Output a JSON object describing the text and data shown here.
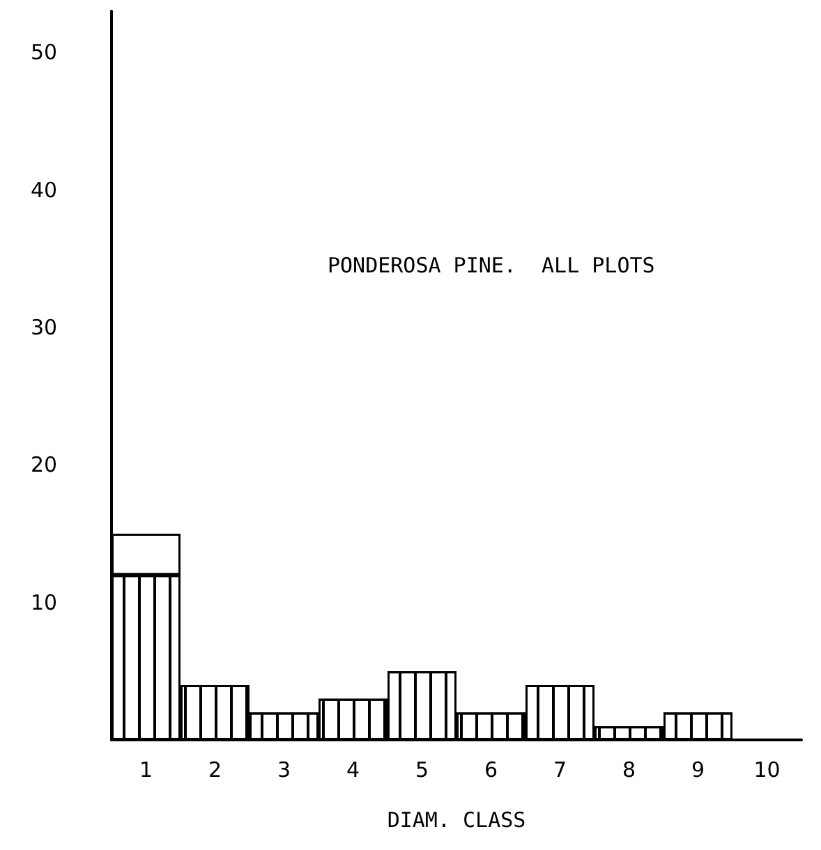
{
  "chart_data": {
    "type": "bar",
    "title": "PONDEROSA PINE.  ALL PLOTS",
    "xlabel": "DIAM. CLASS",
    "categories": [
      "1",
      "2",
      "3",
      "4",
      "5",
      "6",
      "7",
      "8",
      "9",
      "10"
    ],
    "stacked": true,
    "series": [
      {
        "color": "#ffffff",
        "values": [
          12,
          4,
          2,
          3,
          5,
          2,
          4,
          1,
          2,
          0
        ]
      },
      {
        "color": "#ffffff",
        "values": [
          3,
          null,
          null,
          null,
          null,
          null,
          null,
          null,
          null,
          null
        ]
      }
    ],
    "ylim": [
      0,
      53
    ],
    "yticks": [
      10,
      20,
      30,
      40,
      50
    ],
    "grid": false
  }
}
